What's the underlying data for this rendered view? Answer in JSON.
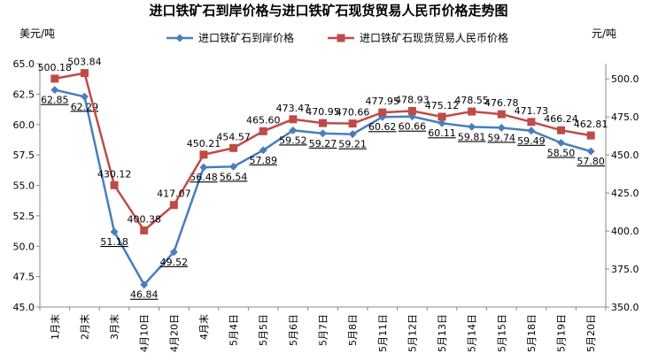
{
  "chart_data": {
    "type": "line",
    "title": "进口铁矿石到岸价格与进口铁矿石现货贸易人民币价格走势图",
    "left_unit": "美元/吨",
    "right_unit": "元/吨",
    "categories": [
      "1月末",
      "2月末",
      "3月末",
      "4月10日",
      "4月20日",
      "4月末",
      "5月4日",
      "5月5日",
      "5月6日",
      "5月7日",
      "5月8日",
      "5月11日",
      "5月12日",
      "5月13日",
      "5月14日",
      "5月15日",
      "5月18日",
      "5月19日",
      "5月20日"
    ],
    "series": [
      {
        "name": "进口铁矿石到岸价格",
        "axis": "left",
        "color": "#4a7ebb",
        "marker": "diamond",
        "values": [
          62.85,
          62.29,
          51.18,
          46.84,
          49.52,
          56.48,
          56.54,
          57.89,
          59.52,
          59.27,
          59.21,
          60.62,
          60.66,
          60.11,
          59.81,
          59.74,
          59.49,
          58.5,
          57.8
        ],
        "labels": [
          "62.85",
          "62.29",
          "51.18",
          "46.84",
          "49.52",
          "56.48",
          "56.54",
          "57.89",
          "59.52",
          "59.27",
          "59.21",
          "60.62",
          "60.66",
          "60.11",
          "59.81",
          "59.74",
          "59.49",
          "58.50",
          "57.80"
        ]
      },
      {
        "name": "进口铁矿石现货贸易人民币价格",
        "axis": "right",
        "color": "#be4b48",
        "marker": "square",
        "values": [
          500.18,
          503.84,
          430.12,
          400.38,
          417.07,
          450.21,
          454.57,
          465.6,
          473.47,
          470.95,
          470.66,
          477.95,
          478.93,
          475.12,
          478.55,
          476.78,
          471.73,
          466.24,
          462.81
        ],
        "labels": [
          "500.18",
          "503.84",
          "430.12",
          "400.38",
          "417.07",
          "450.21",
          "454.57",
          "465.60",
          "473.47",
          "470.95",
          "470.66",
          "477.95",
          "478.93",
          "475.12",
          "478.55",
          "476.78",
          "471.73",
          "466.24",
          "462.81"
        ]
      }
    ],
    "left_axis": {
      "min": 45.0,
      "max": 65.0,
      "step": 2.5,
      "ticks": [
        "45.0",
        "47.5",
        "50.0",
        "52.5",
        "55.0",
        "57.5",
        "60.0",
        "62.5",
        "65.0"
      ]
    },
    "right_axis": {
      "min": 350.0,
      "max": 510.0,
      "ticks": [
        "350.0",
        "375.0",
        "400.0",
        "425.0",
        "450.0",
        "475.0",
        "500.0"
      ],
      "tick_values": [
        350,
        375,
        400,
        425,
        450,
        475,
        500
      ]
    },
    "grid": false,
    "legend": "top"
  }
}
